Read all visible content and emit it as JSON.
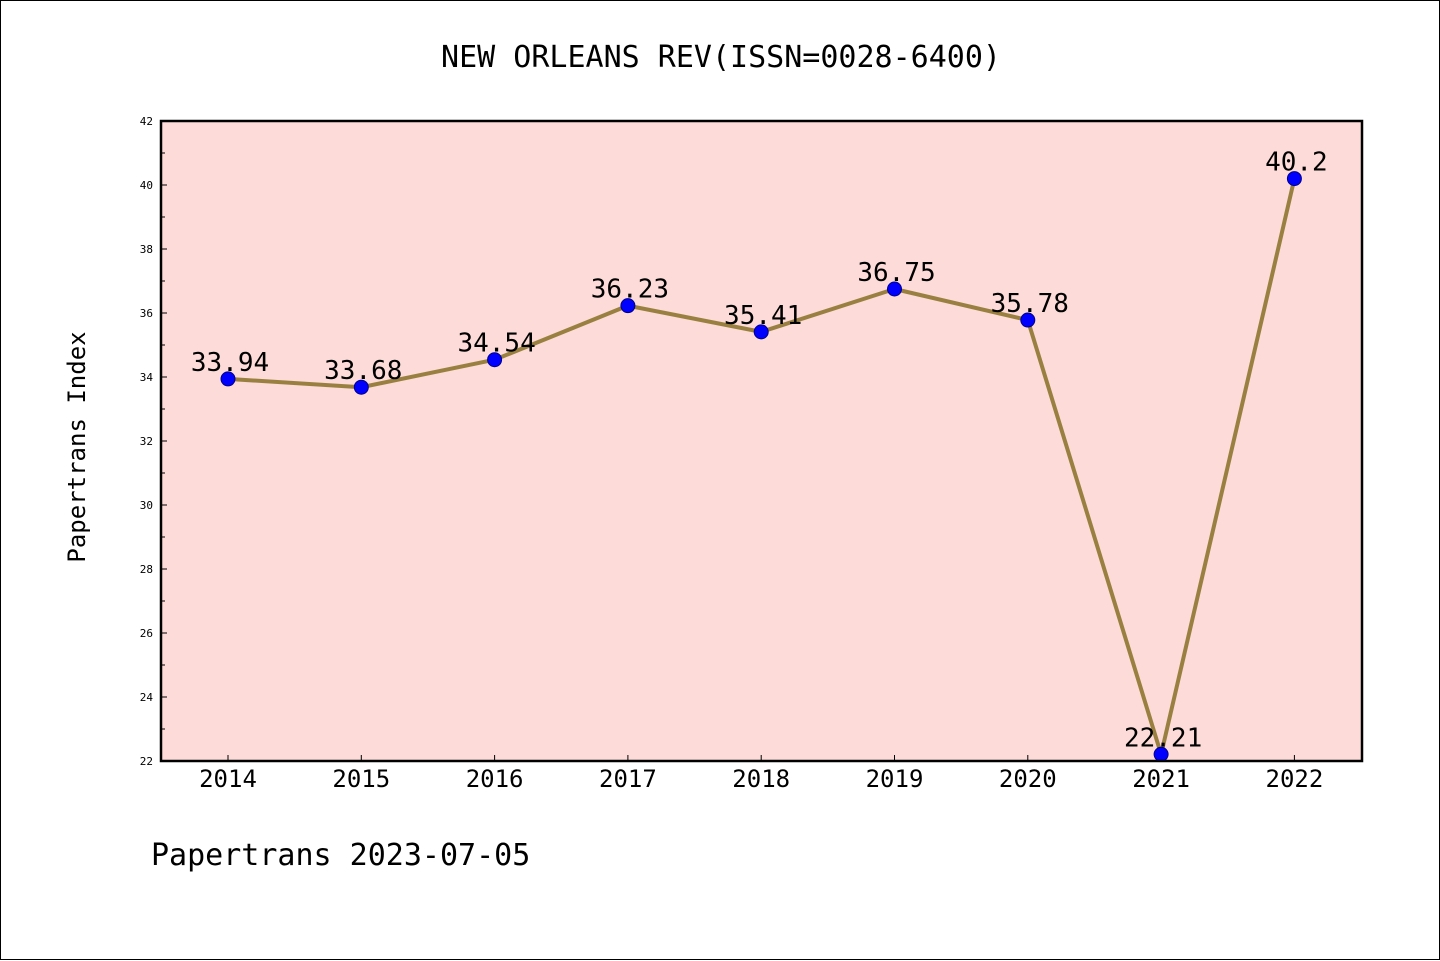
{
  "chart_data": {
    "type": "line",
    "title": "NEW ORLEANS REV(ISSN=0028-6400)",
    "xlabel": "",
    "ylabel": "Papertrans Index",
    "categories": [
      "2014",
      "2015",
      "2016",
      "2017",
      "2018",
      "2019",
      "2020",
      "2021",
      "2022"
    ],
    "series": [
      {
        "values": [
          33.94,
          33.68,
          34.54,
          36.23,
          35.41,
          36.75,
          35.78,
          22.21,
          40.2
        ],
        "labels": [
          "33.94",
          "33.68",
          "34.54",
          "36.23",
          "35.41",
          "36.75",
          "35.78",
          "22.21",
          "40.2"
        ]
      }
    ],
    "ylim": [
      22,
      42
    ],
    "yticks": [
      "22",
      "24",
      "26",
      "28",
      "30",
      "32",
      "34",
      "36",
      "38",
      "40",
      "42"
    ],
    "grid": false,
    "legend": "none",
    "colors": {
      "plot_background": "#fddbd8",
      "line": "#9a8040",
      "marker": "#0000ff"
    }
  },
  "footer": "Papertrans 2023-07-05"
}
